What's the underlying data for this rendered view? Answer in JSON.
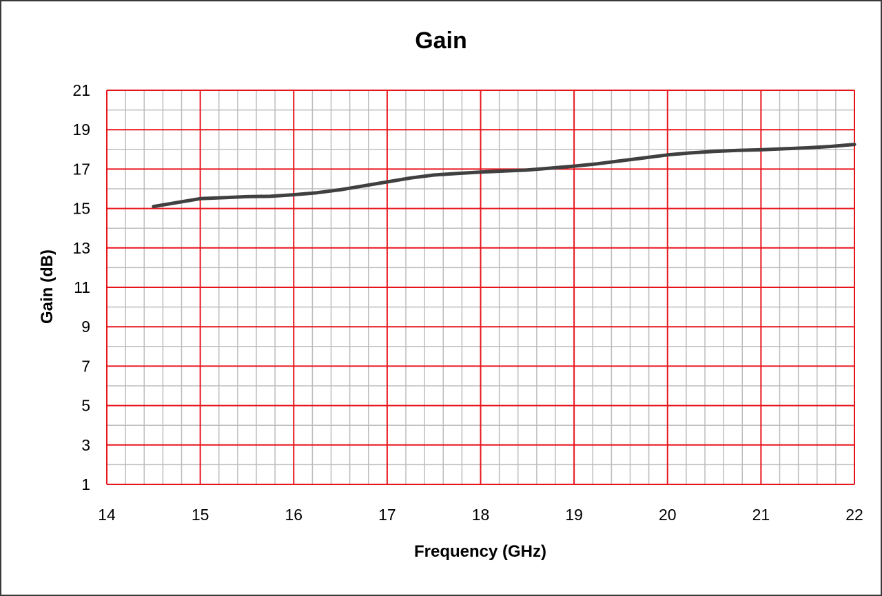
{
  "chart_data": {
    "type": "line",
    "title": "Gain",
    "xlabel": "Frequency (GHz)",
    "ylabel": "Gain (dB)",
    "xlim": [
      14,
      22
    ],
    "ylim": [
      1,
      21
    ],
    "x_ticks": [
      "14",
      "15",
      "16",
      "17",
      "18",
      "19",
      "20",
      "21",
      "22"
    ],
    "y_ticks": [
      "1",
      "3",
      "5",
      "7",
      "9",
      "11",
      "13",
      "15",
      "17",
      "19",
      "21"
    ],
    "grid": true,
    "legend": "none",
    "colors": {
      "major_grid": "#e8141c",
      "minor_grid": "#bdbdbd",
      "line": "#404040"
    },
    "series": [
      {
        "x": [
          14.5,
          14.75,
          15.0,
          15.25,
          15.5,
          15.75,
          16.0,
          16.25,
          16.5,
          16.75,
          17.0,
          17.25,
          17.5,
          17.75,
          18.0,
          18.25,
          18.5,
          18.75,
          19.0,
          19.25,
          19.5,
          19.75,
          20.0,
          20.25,
          20.5,
          20.75,
          21.0,
          21.25,
          21.5,
          21.75,
          22.0
        ],
        "y": [
          15.1,
          15.3,
          15.5,
          15.55,
          15.6,
          15.62,
          15.7,
          15.8,
          15.95,
          16.15,
          16.35,
          16.55,
          16.7,
          16.78,
          16.85,
          16.9,
          16.95,
          17.05,
          17.15,
          17.27,
          17.42,
          17.57,
          17.72,
          17.82,
          17.9,
          17.95,
          17.98,
          18.03,
          18.08,
          18.15,
          18.25
        ]
      }
    ]
  }
}
